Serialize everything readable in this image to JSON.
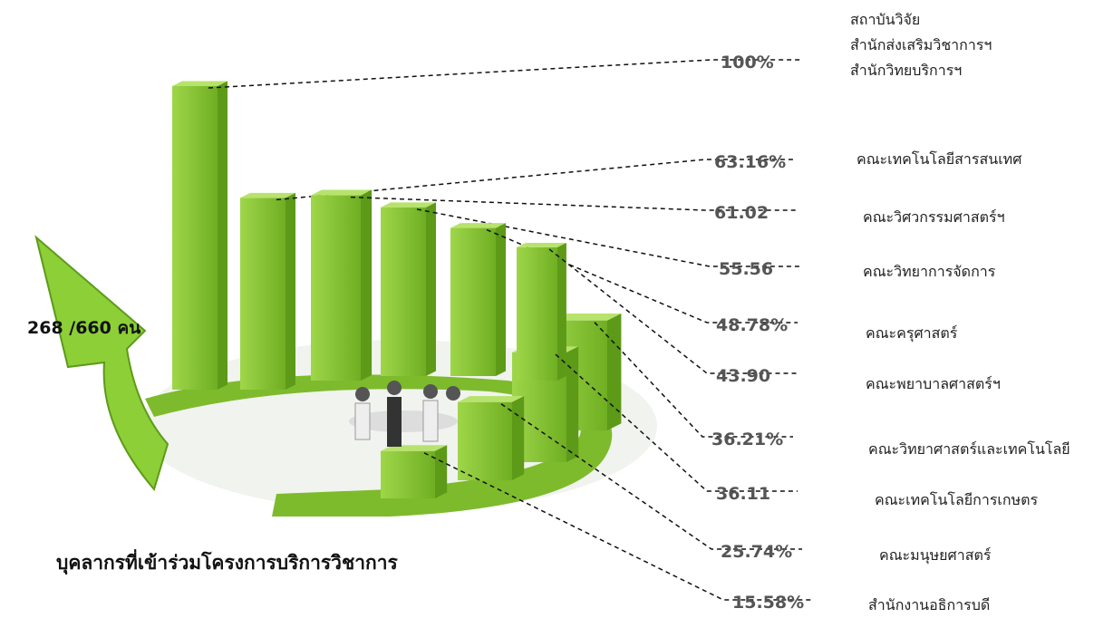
{
  "chart_data": {
    "type": "bar3d",
    "title": "บุคลากรที่เข้าร่วมโครงการบริการวิชาการ",
    "annotation": "268 /660 คน",
    "categories": [
      "สถาบันวิจัย\nสำนักส่งเสริมวิชาการฯ\nสำนักวิทยบริการฯ",
      "คณะเทคโนโลยีสารสนเทศ",
      "คณะวิศวกรรมศาสตร์ฯ",
      "คณะวิทยาการจัดการ",
      "คณะครุศาสตร์",
      "คณะพยาบาลศาสตร์ฯ",
      "คณะวิทยาศาสตร์และเทคโนโลยี",
      "คณะเทคโนโลยีการเกษตร",
      "คณะมนุษยศาสตร์",
      "สำนักงานอธิการบดี"
    ],
    "values": [
      100,
      63.16,
      61.02,
      55.56,
      48.78,
      43.9,
      36.21,
      36.11,
      25.74,
      15.58
    ],
    "value_labels": [
      "100%",
      "63.16%",
      "61.02",
      "55.56",
      "48.78%",
      "43.90",
      "36.21%",
      "36.11",
      "25.74%",
      "15.58%"
    ],
    "color": "#86c232"
  }
}
